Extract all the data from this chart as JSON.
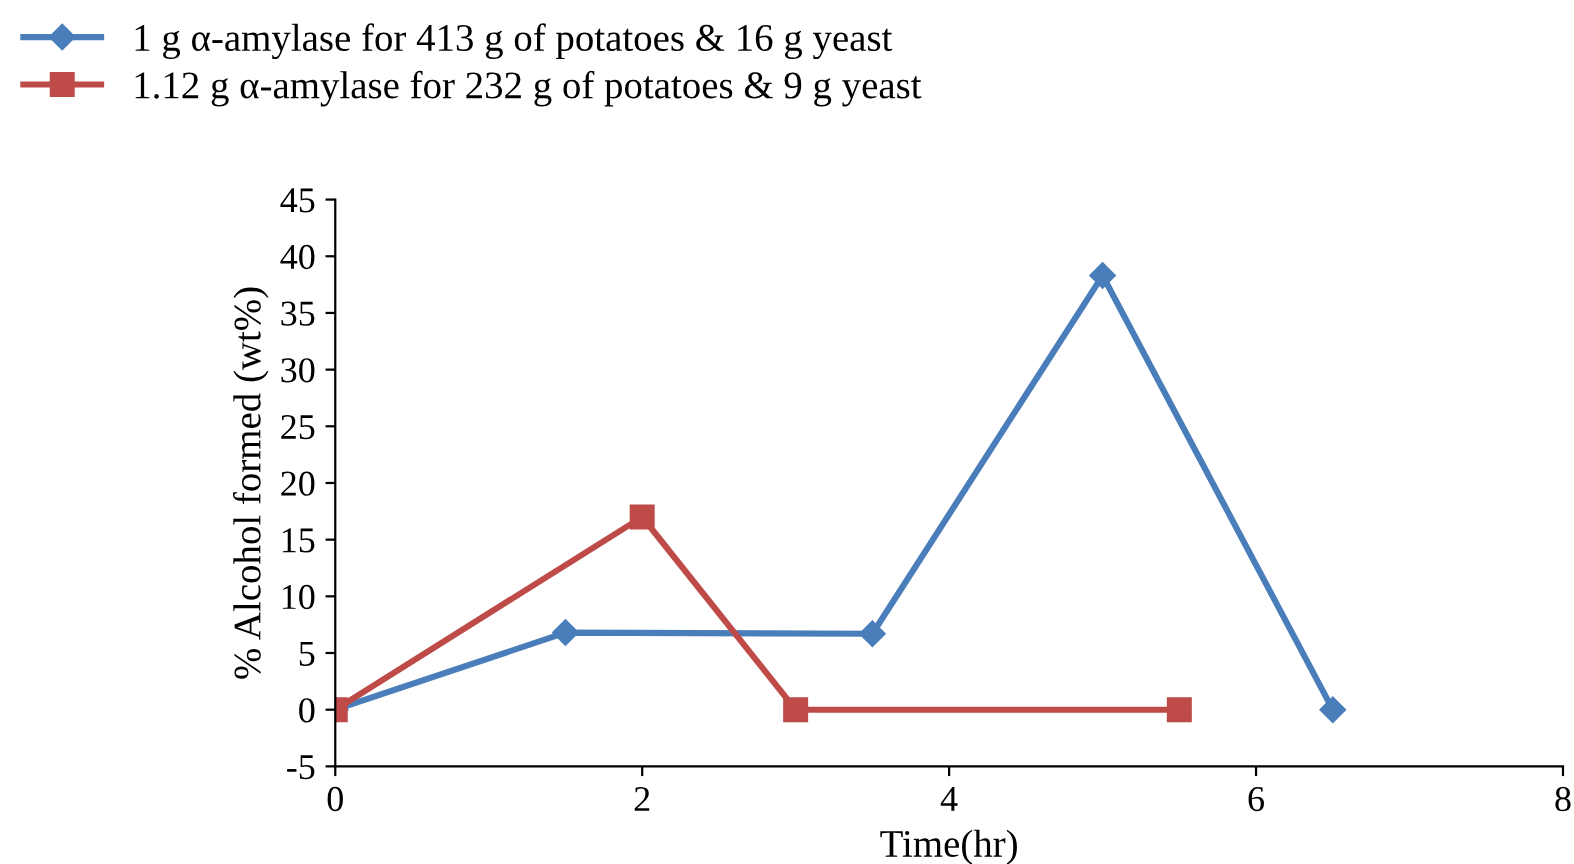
{
  "chart_data": {
    "type": "line",
    "xlabel": "Time(hr)",
    "ylabel": "% Alcohol formed (wt%)",
    "series": [
      {
        "name": "1 g α-amylase for 413 g of potatoes & 16 g yeast",
        "color": "#4a7ebb",
        "marker": "diamond",
        "x": [
          0,
          1.5,
          3.5,
          5,
          6.5
        ],
        "values": [
          0,
          6.8,
          6.7,
          38.3,
          0
        ]
      },
      {
        "name": "1.12 g α-amylase for 232 g of potatoes & 9 g yeast",
        "color": "#be4b48",
        "marker": "square",
        "x": [
          0,
          2,
          3,
          5.5
        ],
        "values": [
          0,
          17,
          0,
          0
        ]
      }
    ],
    "xlim": [
      0,
      8
    ],
    "xticks": [
      0,
      2,
      4,
      6,
      8
    ],
    "ylim": [
      -5,
      45
    ],
    "yticks": [
      -5,
      0,
      5,
      10,
      15,
      20,
      25,
      30,
      35,
      40,
      45
    ],
    "grid": false,
    "legend": "top left",
    "line_style": "solid"
  }
}
